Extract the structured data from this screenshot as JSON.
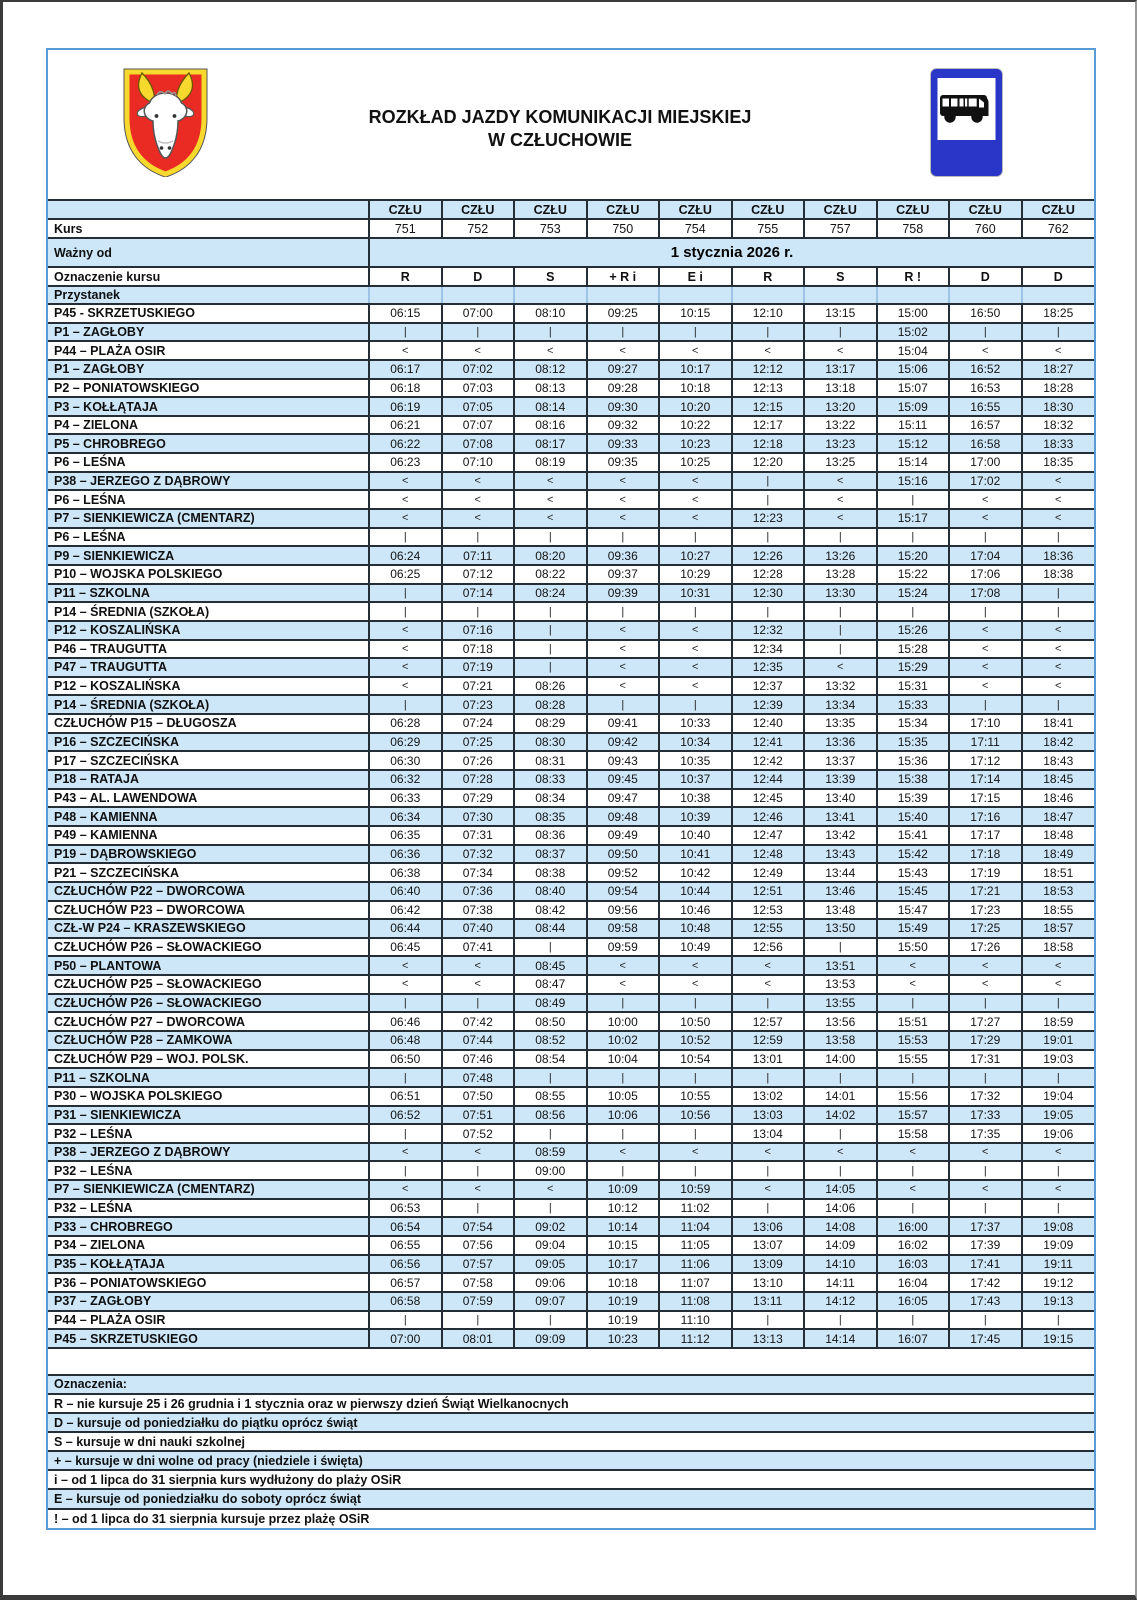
{
  "header": {
    "title_line1": "ROZKŁAD JAZDY KOMUNIKACJI MIEJSKIEJ",
    "title_line2": "W CZŁUCHOWIE",
    "coat_of_arms": "herb-czluchow-bull-head",
    "bus_sign": "bus-stop-road-sign"
  },
  "colors": {
    "row_alt_blue": "#cde7f8",
    "grid_dark": "#252d36",
    "frame_blue": "#5b9bd5",
    "sign_blue": "#2936c8",
    "shield_red": "#ea2b23",
    "shield_gold": "#f7d82c"
  },
  "table": {
    "network_label": "CZŁU",
    "kurs_label": "Kurs",
    "kurs_numbers": [
      "751",
      "752",
      "753",
      "750",
      "754",
      "755",
      "757",
      "758",
      "760",
      "762"
    ],
    "valid_from_label": "Ważny od",
    "valid_from_value": "1 stycznia 2026 r.",
    "designation_label": "Oznaczenie kursu",
    "designations": [
      "R",
      "D",
      "S",
      "+ R i",
      "E i",
      "R",
      "S",
      "R !",
      "D",
      "D"
    ],
    "stop_header": "Przystanek",
    "rows": [
      {
        "stop": "P45 - SKRZETUSKIEGO",
        "times": [
          "06:15",
          "07:00",
          "08:10",
          "09:25",
          "10:15",
          "12:10",
          "13:15",
          "15:00",
          "16:50",
          "18:25"
        ]
      },
      {
        "stop": "P1 – ZAGŁOBY",
        "times": [
          "|",
          "|",
          "|",
          "|",
          "|",
          "|",
          "|",
          "15:02",
          "|",
          "|"
        ]
      },
      {
        "stop": "P44 – PLAŻA OSIR",
        "times": [
          "<",
          "<",
          "<",
          "<",
          "<",
          "<",
          "<",
          "15:04",
          "<",
          "<"
        ]
      },
      {
        "stop": "P1 – ZAGŁOBY",
        "times": [
          "06:17",
          "07:02",
          "08:12",
          "09:27",
          "10:17",
          "12:12",
          "13:17",
          "15:06",
          "16:52",
          "18:27"
        ]
      },
      {
        "stop": "P2 – PONIATOWSKIEGO",
        "times": [
          "06:18",
          "07:03",
          "08:13",
          "09:28",
          "10:18",
          "12:13",
          "13:18",
          "15:07",
          "16:53",
          "18:28"
        ]
      },
      {
        "stop": "P3 – KOŁŁĄTAJA",
        "times": [
          "06:19",
          "07:05",
          "08:14",
          "09:30",
          "10:20",
          "12:15",
          "13:20",
          "15:09",
          "16:55",
          "18:30"
        ]
      },
      {
        "stop": "P4 – ZIELONA",
        "times": [
          "06:21",
          "07:07",
          "08:16",
          "09:32",
          "10:22",
          "12:17",
          "13:22",
          "15:11",
          "16:57",
          "18:32"
        ]
      },
      {
        "stop": "P5 – CHROBREGO",
        "times": [
          "06:22",
          "07:08",
          "08:17",
          "09:33",
          "10:23",
          "12:18",
          "13:23",
          "15:12",
          "16:58",
          "18:33"
        ]
      },
      {
        "stop": "P6 – LEŚNA",
        "times": [
          "06:23",
          "07:10",
          "08:19",
          "09:35",
          "10:25",
          "12:20",
          "13:25",
          "15:14",
          "17:00",
          "18:35"
        ]
      },
      {
        "stop": "P38 – JERZEGO Z DĄBROWY",
        "times": [
          "<",
          "<",
          "<",
          "<",
          "<",
          "|",
          "<",
          "15:16",
          "17:02",
          "<"
        ]
      },
      {
        "stop": "P6 – LEŚNA",
        "times": [
          "<",
          "<",
          "<",
          "<",
          "<",
          "|",
          "<",
          "|",
          "<",
          "<"
        ]
      },
      {
        "stop": "P7 – SIENKIEWICZA (CMENTARZ)",
        "times": [
          "<",
          "<",
          "<",
          "<",
          "<",
          "12:23",
          "<",
          "15:17",
          "<",
          "<"
        ]
      },
      {
        "stop": "P6 – LEŚNA",
        "times": [
          "|",
          "|",
          "|",
          "|",
          "|",
          "|",
          "|",
          "|",
          "|",
          "|"
        ]
      },
      {
        "stop": "P9 – SIENKIEWICZA",
        "times": [
          "06:24",
          "07:11",
          "08:20",
          "09:36",
          "10:27",
          "12:26",
          "13:26",
          "15:20",
          "17:04",
          "18:36"
        ]
      },
      {
        "stop": "P10 – WOJSKA POLSKIEGO",
        "times": [
          "06:25",
          "07:12",
          "08:22",
          "09:37",
          "10:29",
          "12:28",
          "13:28",
          "15:22",
          "17:06",
          "18:38"
        ]
      },
      {
        "stop": "P11 – SZKOLNA",
        "times": [
          "|",
          "07:14",
          "08:24",
          "09:39",
          "10:31",
          "12:30",
          "13:30",
          "15:24",
          "17:08",
          "|"
        ]
      },
      {
        "stop": "P14 – ŚREDNIA (SZKOŁA)",
        "times": [
          "|",
          "|",
          "|",
          "|",
          "|",
          "|",
          "|",
          "|",
          "|",
          "|"
        ]
      },
      {
        "stop": "P12 – KOSZALIŃSKA",
        "times": [
          "<",
          "07:16",
          "|",
          "<",
          "<",
          "12:32",
          "|",
          "15:26",
          "<",
          "<"
        ]
      },
      {
        "stop": "P46 – TRAUGUTTA",
        "times": [
          "<",
          "07:18",
          "|",
          "<",
          "<",
          "12:34",
          "|",
          "15:28",
          "<",
          "<"
        ]
      },
      {
        "stop": "P47 – TRAUGUTTA",
        "times": [
          "<",
          "07:19",
          "|",
          "<",
          "<",
          "12:35",
          "<",
          "15:29",
          "<",
          "<"
        ]
      },
      {
        "stop": "P12 – KOSZALIŃSKA",
        "times": [
          "<",
          "07:21",
          "08:26",
          "<",
          "<",
          "12:37",
          "13:32",
          "15:31",
          "<",
          "<"
        ]
      },
      {
        "stop": "P14 – ŚREDNIA (SZKOŁA)",
        "times": [
          "|",
          "07:23",
          "08:28",
          "|",
          "|",
          "12:39",
          "13:34",
          "15:33",
          "|",
          "|"
        ]
      },
      {
        "stop": "CZŁUCHÓW P15 – DŁUGOSZA",
        "times": [
          "06:28",
          "07:24",
          "08:29",
          "09:41",
          "10:33",
          "12:40",
          "13:35",
          "15:34",
          "17:10",
          "18:41"
        ]
      },
      {
        "stop": "P16 – SZCZECIŃSKA",
        "times": [
          "06:29",
          "07:25",
          "08:30",
          "09:42",
          "10:34",
          "12:41",
          "13:36",
          "15:35",
          "17:11",
          "18:42"
        ]
      },
      {
        "stop": "P17 – SZCZECIŃSKA",
        "times": [
          "06:30",
          "07:26",
          "08:31",
          "09:43",
          "10:35",
          "12:42",
          "13:37",
          "15:36",
          "17:12",
          "18:43"
        ]
      },
      {
        "stop": "P18 – RATAJA",
        "times": [
          "06:32",
          "07:28",
          "08:33",
          "09:45",
          "10:37",
          "12:44",
          "13:39",
          "15:38",
          "17:14",
          "18:45"
        ]
      },
      {
        "stop": "P43 – AL. LAWENDOWA",
        "times": [
          "06:33",
          "07:29",
          "08:34",
          "09:47",
          "10:38",
          "12:45",
          "13:40",
          "15:39",
          "17:15",
          "18:46"
        ]
      },
      {
        "stop": "P48 – KAMIENNA",
        "times": [
          "06:34",
          "07:30",
          "08:35",
          "09:48",
          "10:39",
          "12:46",
          "13:41",
          "15:40",
          "17:16",
          "18:47"
        ]
      },
      {
        "stop": "P49 – KAMIENNA",
        "times": [
          "06:35",
          "07:31",
          "08:36",
          "09:49",
          "10:40",
          "12:47",
          "13:42",
          "15:41",
          "17:17",
          "18:48"
        ]
      },
      {
        "stop": "P19 – DĄBROWSKIEGO",
        "times": [
          "06:36",
          "07:32",
          "08:37",
          "09:50",
          "10:41",
          "12:48",
          "13:43",
          "15:42",
          "17:18",
          "18:49"
        ]
      },
      {
        "stop": "P21 – SZCZECIŃSKA",
        "times": [
          "06:38",
          "07:34",
          "08:38",
          "09:52",
          "10:42",
          "12:49",
          "13:44",
          "15:43",
          "17:19",
          "18:51"
        ]
      },
      {
        "stop": "CZŁUCHÓW P22 – DWORCOWA",
        "times": [
          "06:40",
          "07:36",
          "08:40",
          "09:54",
          "10:44",
          "12:51",
          "13:46",
          "15:45",
          "17:21",
          "18:53"
        ]
      },
      {
        "stop": "CZŁUCHÓW P23 – DWORCOWA",
        "times": [
          "06:42",
          "07:38",
          "08:42",
          "09:56",
          "10:46",
          "12:53",
          "13:48",
          "15:47",
          "17:23",
          "18:55"
        ]
      },
      {
        "stop": "CZŁ-W P24 – KRASZEWSKIEGO",
        "times": [
          "06:44",
          "07:40",
          "08:44",
          "09:58",
          "10:48",
          "12:55",
          "13:50",
          "15:49",
          "17:25",
          "18:57"
        ]
      },
      {
        "stop": "CZŁUCHÓW P26 – SŁOWACKIEGO",
        "times": [
          "06:45",
          "07:41",
          "|",
          "09:59",
          "10:49",
          "12:56",
          "|",
          "15:50",
          "17:26",
          "18:58"
        ]
      },
      {
        "stop": "P50 – PLANTOWA",
        "times": [
          "<",
          "<",
          "08:45",
          "<",
          "<",
          "<",
          "13:51",
          "<",
          "<",
          "<"
        ]
      },
      {
        "stop": "CZŁUCHÓW P25 – SŁOWACKIEGO",
        "times": [
          "<",
          "<",
          "08:47",
          "<",
          "<",
          "<",
          "13:53",
          "<",
          "<",
          "<"
        ]
      },
      {
        "stop": "CZŁUCHÓW P26 – SŁOWACKIEGO",
        "times": [
          "|",
          "|",
          "08:49",
          "|",
          "|",
          "|",
          "13:55",
          "|",
          "|",
          "|"
        ]
      },
      {
        "stop": "CZŁUCHÓW P27 – DWORCOWA",
        "times": [
          "06:46",
          "07:42",
          "08:50",
          "10:00",
          "10:50",
          "12:57",
          "13:56",
          "15:51",
          "17:27",
          "18:59"
        ]
      },
      {
        "stop": "CZŁUCHÓW P28 – ZAMKOWA",
        "times": [
          "06:48",
          "07:44",
          "08:52",
          "10:02",
          "10:52",
          "12:59",
          "13:58",
          "15:53",
          "17:29",
          "19:01"
        ]
      },
      {
        "stop": "CZŁUCHÓW P29 – WOJ. POLSK.",
        "times": [
          "06:50",
          "07:46",
          "08:54",
          "10:04",
          "10:54",
          "13:01",
          "14:00",
          "15:55",
          "17:31",
          "19:03"
        ]
      },
      {
        "stop": "P11 – SZKOLNA",
        "times": [
          "|",
          "07:48",
          "|",
          "|",
          "|",
          "|",
          "|",
          "|",
          "|",
          "|"
        ]
      },
      {
        "stop": "P30 – WOJSKA POLSKIEGO",
        "times": [
          "06:51",
          "07:50",
          "08:55",
          "10:05",
          "10:55",
          "13:02",
          "14:01",
          "15:56",
          "17:32",
          "19:04"
        ]
      },
      {
        "stop": "P31 – SIENKIEWICZA",
        "times": [
          "06:52",
          "07:51",
          "08:56",
          "10:06",
          "10:56",
          "13:03",
          "14:02",
          "15:57",
          "17:33",
          "19:05"
        ]
      },
      {
        "stop": "P32 – LEŚNA",
        "times": [
          "|",
          "07:52",
          "|",
          "|",
          "|",
          "13:04",
          "|",
          "15:58",
          "17:35",
          "19:06"
        ]
      },
      {
        "stop": "P38 – JERZEGO Z DĄBROWY",
        "times": [
          "<",
          "<",
          "08:59",
          "<",
          "<",
          "<",
          "<",
          "<",
          "<",
          "<"
        ]
      },
      {
        "stop": "P32 – LEŚNA",
        "times": [
          "|",
          "|",
          "09:00",
          "|",
          "|",
          "|",
          "|",
          "|",
          "|",
          "|"
        ]
      },
      {
        "stop": "P7 – SIENKIEWICZA (CMENTARZ)",
        "times": [
          "<",
          "<",
          "<",
          "10:09",
          "10:59",
          "<",
          "14:05",
          "<",
          "<",
          "<"
        ]
      },
      {
        "stop": "P32 – LEŚNA",
        "times": [
          "06:53",
          "|",
          "|",
          "10:12",
          "11:02",
          "|",
          "14:06",
          "|",
          "|",
          "|"
        ]
      },
      {
        "stop": "P33 – CHROBREGO",
        "times": [
          "06:54",
          "07:54",
          "09:02",
          "10:14",
          "11:04",
          "13:06",
          "14:08",
          "16:00",
          "17:37",
          "19:08"
        ]
      },
      {
        "stop": "P34 – ZIELONA",
        "times": [
          "06:55",
          "07:56",
          "09:04",
          "10:15",
          "11:05",
          "13:07",
          "14:09",
          "16:02",
          "17:39",
          "19:09"
        ]
      },
      {
        "stop": "P35 – KOŁŁĄTAJA",
        "times": [
          "06:56",
          "07:57",
          "09:05",
          "10:17",
          "11:06",
          "13:09",
          "14:10",
          "16:03",
          "17:41",
          "19:11"
        ]
      },
      {
        "stop": "P36 – PONIATOWSKIEGO",
        "times": [
          "06:57",
          "07:58",
          "09:06",
          "10:18",
          "11:07",
          "13:10",
          "14:11",
          "16:04",
          "17:42",
          "19:12"
        ]
      },
      {
        "stop": "P37 – ZAGŁOBY",
        "times": [
          "06:58",
          "07:59",
          "09:07",
          "10:19",
          "11:08",
          "13:11",
          "14:12",
          "16:05",
          "17:43",
          "19:13"
        ]
      },
      {
        "stop": "P44 – PLAŻA OSIR",
        "times": [
          "|",
          "|",
          "|",
          "10:19",
          "11:10",
          "|",
          "|",
          "|",
          "|",
          "|"
        ]
      },
      {
        "stop": "P45 – SKRZETUSKIEGO",
        "times": [
          "07:00",
          "08:01",
          "09:09",
          "10:23",
          "11:12",
          "13:13",
          "14:14",
          "16:07",
          "17:45",
          "19:15"
        ]
      }
    ]
  },
  "legend": {
    "heading": "Oznaczenia:",
    "items": [
      "R – nie kursuje 25 i 26 grudnia i 1 stycznia oraz w pierwszy dzień Świąt Wielkanocnych",
      "D – kursuje od poniedziałku do piątku oprócz świąt",
      "S – kursuje w dni nauki szkolnej",
      "+ – kursuje w dni wolne od pracy (niedziele i święta)",
      "i – od 1 lipca do 31 sierpnia kurs wydłużony do plaży OSiR",
      "E – kursuje od poniedziałku do soboty oprócz świąt",
      "! – od 1 lipca do 31 sierpnia kursuje przez plażę OSiR"
    ]
  }
}
